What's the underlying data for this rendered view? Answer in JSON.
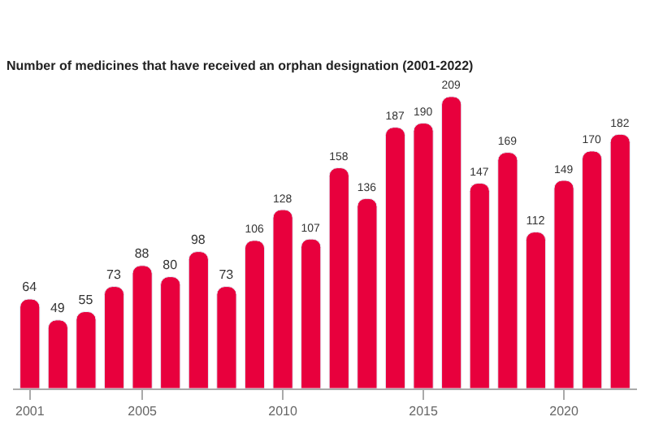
{
  "chart_data": {
    "type": "bar",
    "title": "Number of medicines that have received an orphan designation (2001-2022)",
    "x": [
      2001,
      2002,
      2003,
      2004,
      2005,
      2006,
      2007,
      2008,
      2009,
      2010,
      2011,
      2012,
      2013,
      2014,
      2015,
      2016,
      2017,
      2018,
      2019,
      2020,
      2021,
      2022
    ],
    "values": [
      64,
      49,
      55,
      73,
      88,
      80,
      98,
      73,
      106,
      128,
      107,
      158,
      136,
      187,
      190,
      209,
      147,
      169,
      112,
      149,
      170,
      182
    ],
    "color": "#e8003d",
    "xlim": [
      2000.4,
      2022.6
    ],
    "xticks": [
      2001,
      2005,
      2010,
      2015,
      2020
    ],
    "data_labels": true
  }
}
